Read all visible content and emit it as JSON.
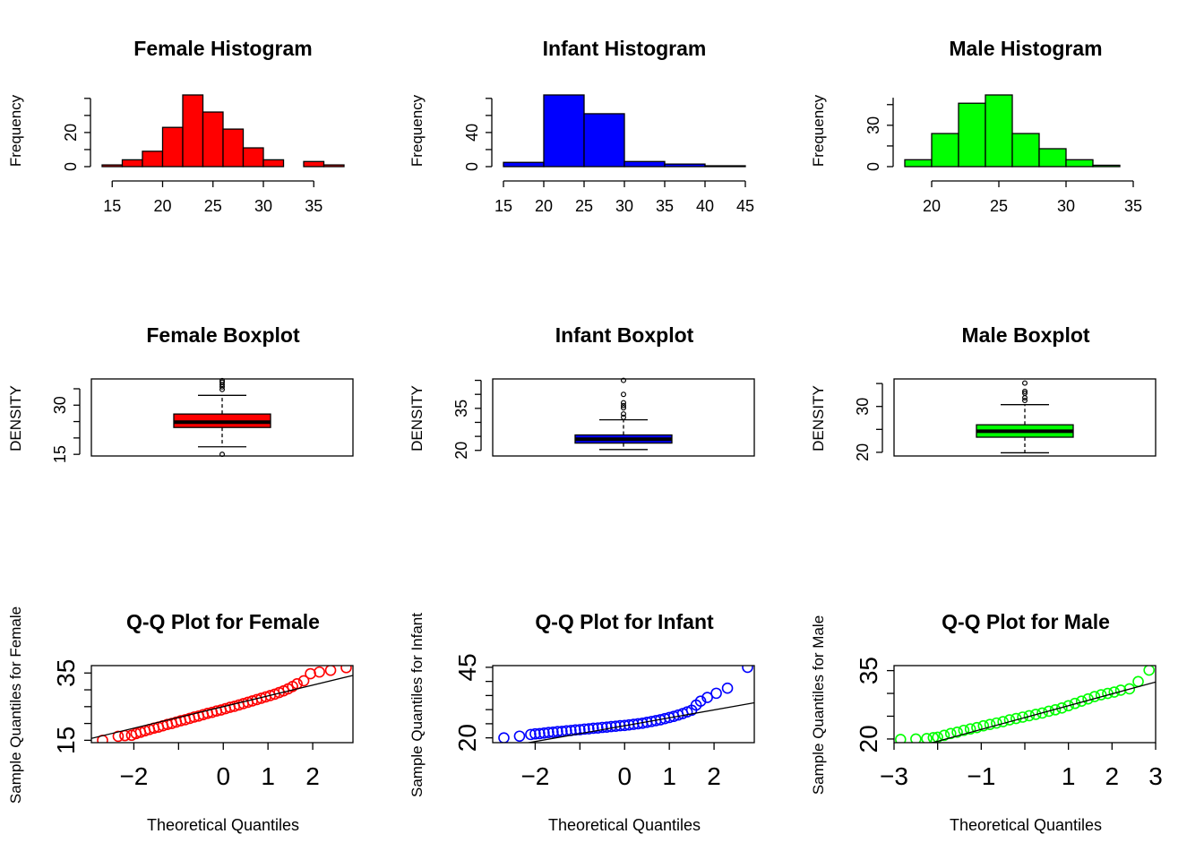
{
  "colors": {
    "Female": "#FF0000",
    "Infant": "#0000FF",
    "Male": "#00FF00",
    "axis": "#000000",
    "qqline": "#000000"
  },
  "histograms": [
    {
      "group": "Female",
      "title": "Female Histogram",
      "ylabel": "Frequency",
      "xlabel": "",
      "color": "#FF0000",
      "breaks": [
        14,
        16,
        18,
        20,
        22,
        24,
        26,
        28,
        30,
        32,
        34,
        36,
        38
      ],
      "counts": [
        1,
        4,
        9,
        23,
        42,
        32,
        22,
        11,
        4,
        0,
        3,
        1
      ],
      "xticks": [
        15,
        20,
        25,
        30,
        35
      ],
      "xlim": [
        14,
        38
      ],
      "yticks": [
        0,
        20
      ],
      "yaxis_max": 40
    },
    {
      "group": "Infant",
      "title": "Infant Histogram",
      "ylabel": "Frequency",
      "xlabel": "",
      "color": "#0000FF",
      "breaks": [
        15,
        20,
        25,
        30,
        35,
        40,
        45
      ],
      "counts": [
        5,
        84,
        62,
        6,
        3,
        1
      ],
      "xticks": [
        15,
        20,
        25,
        30,
        35,
        40,
        45
      ],
      "xlim": [
        15,
        45
      ],
      "yticks": [
        0,
        40
      ],
      "yaxis_max": 80
    },
    {
      "group": "Male",
      "title": "Male Histogram",
      "ylabel": "Frequency",
      "xlabel": "",
      "color": "#00FF00",
      "breaks": [
        18,
        20,
        22,
        24,
        26,
        28,
        30,
        32,
        34,
        36
      ],
      "counts": [
        5,
        24,
        46,
        52,
        24,
        13,
        5,
        1,
        0
      ],
      "xticks": [
        20,
        25,
        30,
        35
      ],
      "xlim": [
        18,
        36
      ],
      "yticks": [
        0,
        30
      ],
      "yaxis_max": 50
    }
  ],
  "boxplots": [
    {
      "group": "Female",
      "title": "Female Boxplot",
      "ylabel": "DENSITY",
      "color": "#FF0000",
      "ylim": [
        14.5,
        38
      ],
      "yticks": [
        15,
        30
      ],
      "yaxis_ticks": [
        15,
        20,
        25,
        30,
        35
      ],
      "whisker_low": 17.3,
      "q1": 23.2,
      "median": 24.8,
      "q3": 27.3,
      "whisker_high": 33.0,
      "outliers": [
        15.0,
        34.8,
        35.6,
        36.3,
        37.0,
        37.5
      ]
    },
    {
      "group": "Infant",
      "title": "Infant Boxplot",
      "ylabel": "DENSITY",
      "color": "#0000FF",
      "ylim": [
        18,
        45.5
      ],
      "yticks": [
        20,
        35
      ],
      "yaxis_ticks": [
        20,
        25,
        30,
        35,
        40,
        45
      ],
      "whisker_low": 20.3,
      "q1": 22.6,
      "median": 24.0,
      "q3": 25.5,
      "whisker_high": 30.9,
      "outliers": [
        31.8,
        33.0,
        35.2,
        36.0,
        37.0,
        40.0,
        45.0
      ]
    },
    {
      "group": "Male",
      "title": "Male Boxplot",
      "ylabel": "DENSITY",
      "color": "#00FF00",
      "ylim": [
        19.2,
        36
      ],
      "yticks": [
        20,
        30
      ],
      "yaxis_ticks": [
        20,
        25,
        30,
        35
      ],
      "whisker_low": 19.9,
      "q1": 23.3,
      "median": 24.6,
      "q3": 26.0,
      "whisker_high": 30.4,
      "outliers": [
        31.3,
        31.9,
        32.9,
        33.3,
        35.1
      ]
    }
  ],
  "qqplots": [
    {
      "group": "Female",
      "title": "Q-Q Plot for Female",
      "xlabel": "Theoretical Quantiles",
      "ylabel": "Sample Quantiles for Female",
      "color": "#FF0000",
      "xlim": [
        -2.95,
        2.9
      ],
      "ylim": [
        14.3,
        37.2
      ],
      "xticks": [
        -2,
        0,
        1,
        2
      ],
      "xaxis_ticks": [
        -3,
        -2,
        -1,
        0,
        1,
        2,
        3
      ],
      "yticks": [
        15,
        35
      ],
      "yaxis_ticks": [
        15,
        20,
        25,
        30,
        35
      ],
      "line": {
        "intercept": 25.0,
        "slope": 3.2
      },
      "points": [
        [
          -2.7,
          15.0
        ],
        [
          -2.35,
          16.2
        ],
        [
          -2.2,
          16.4
        ],
        [
          -2.05,
          16.5
        ],
        [
          -1.95,
          17.0
        ],
        [
          -1.85,
          17.4
        ],
        [
          -1.75,
          17.8
        ],
        [
          -1.65,
          18.2
        ],
        [
          -1.55,
          18.6
        ],
        [
          -1.45,
          18.9
        ],
        [
          -1.35,
          19.3
        ],
        [
          -1.25,
          19.7
        ],
        [
          -1.15,
          20.0
        ],
        [
          -1.05,
          20.4
        ],
        [
          -0.95,
          20.8
        ],
        [
          -0.85,
          21.1
        ],
        [
          -0.75,
          21.5
        ],
        [
          -0.65,
          21.9
        ],
        [
          -0.55,
          22.2
        ],
        [
          -0.45,
          22.6
        ],
        [
          -0.35,
          23.0
        ],
        [
          -0.25,
          23.3
        ],
        [
          -0.15,
          23.7
        ],
        [
          -0.05,
          24.0
        ],
        [
          0.05,
          24.4
        ],
        [
          0.15,
          24.8
        ],
        [
          0.25,
          25.1
        ],
        [
          0.35,
          25.5
        ],
        [
          0.45,
          25.9
        ],
        [
          0.55,
          26.3
        ],
        [
          0.65,
          26.7
        ],
        [
          0.75,
          27.1
        ],
        [
          0.85,
          27.5
        ],
        [
          0.95,
          27.9
        ],
        [
          1.05,
          28.3
        ],
        [
          1.15,
          28.7
        ],
        [
          1.25,
          29.2
        ],
        [
          1.35,
          29.7
        ],
        [
          1.45,
          30.3
        ],
        [
          1.55,
          31.0
        ],
        [
          1.65,
          31.8
        ],
        [
          1.8,
          32.7
        ],
        [
          1.95,
          34.8
        ],
        [
          2.15,
          35.3
        ],
        [
          2.4,
          35.8
        ],
        [
          2.75,
          36.6
        ]
      ]
    },
    {
      "group": "Infant",
      "title": "Q-Q Plot for Infant",
      "xlabel": "Theoretical Quantiles",
      "ylabel": "Sample Quantiles for Infant",
      "color": "#0000FF",
      "xlim": [
        -2.95,
        2.9
      ],
      "ylim": [
        18.3,
        45.6
      ],
      "xticks": [
        -2,
        0,
        1,
        2
      ],
      "xaxis_ticks": [
        -3,
        -2,
        -1,
        0,
        1,
        2,
        3
      ],
      "yticks": [
        20,
        45
      ],
      "yaxis_ticks": [
        20,
        25,
        30,
        35,
        40,
        45
      ],
      "line": {
        "intercept": 24.3,
        "slope": 2.8
      },
      "points": [
        [
          -2.7,
          20.0
        ],
        [
          -2.35,
          20.6
        ],
        [
          -2.1,
          21.2
        ],
        [
          -2.0,
          21.4
        ],
        [
          -1.9,
          21.5
        ],
        [
          -1.8,
          21.7
        ],
        [
          -1.7,
          21.9
        ],
        [
          -1.6,
          22.0
        ],
        [
          -1.5,
          22.2
        ],
        [
          -1.4,
          22.3
        ],
        [
          -1.3,
          22.5
        ],
        [
          -1.2,
          22.6
        ],
        [
          -1.1,
          22.8
        ],
        [
          -1.0,
          22.9
        ],
        [
          -0.9,
          23.1
        ],
        [
          -0.8,
          23.2
        ],
        [
          -0.7,
          23.4
        ],
        [
          -0.6,
          23.5
        ],
        [
          -0.5,
          23.7
        ],
        [
          -0.4,
          23.8
        ],
        [
          -0.3,
          24.0
        ],
        [
          -0.2,
          24.1
        ],
        [
          -0.1,
          24.3
        ],
        [
          0.0,
          24.4
        ],
        [
          0.1,
          24.6
        ],
        [
          0.2,
          24.8
        ],
        [
          0.3,
          25.0
        ],
        [
          0.4,
          25.2
        ],
        [
          0.5,
          25.5
        ],
        [
          0.6,
          25.8
        ],
        [
          0.7,
          26.1
        ],
        [
          0.8,
          26.4
        ],
        [
          0.9,
          26.8
        ],
        [
          1.0,
          27.2
        ],
        [
          1.1,
          27.6
        ],
        [
          1.2,
          28.1
        ],
        [
          1.3,
          28.6
        ],
        [
          1.4,
          29.2
        ],
        [
          1.5,
          29.8
        ],
        [
          1.6,
          31.6
        ],
        [
          1.7,
          33.0
        ],
        [
          1.85,
          34.3
        ],
        [
          2.05,
          35.8
        ],
        [
          2.3,
          37.6
        ],
        [
          2.75,
          45.0
        ]
      ]
    },
    {
      "group": "Male",
      "title": "Q-Q Plot for Male",
      "xlabel": "Theoretical Quantiles",
      "ylabel": "Sample Quantiles for Male",
      "color": "#00FF00",
      "xlim": [
        -3,
        3
      ],
      "ylim": [
        19.2,
        36.1
      ],
      "xticks": [
        -3,
        -1,
        1,
        2,
        3
      ],
      "xaxis_ticks": [
        -3,
        -2,
        -1,
        0,
        1,
        2,
        3
      ],
      "yticks": [
        20,
        35
      ],
      "yaxis_ticks": [
        20,
        25,
        30,
        35
      ],
      "line": {
        "intercept": 24.7,
        "slope": 2.6
      },
      "points": [
        [
          -2.85,
          19.9
        ],
        [
          -2.5,
          20.0
        ],
        [
          -2.25,
          20.1
        ],
        [
          -2.1,
          20.3
        ],
        [
          -2.0,
          20.4
        ],
        [
          -1.85,
          20.8
        ],
        [
          -1.7,
          21.2
        ],
        [
          -1.55,
          21.5
        ],
        [
          -1.4,
          21.9
        ],
        [
          -1.25,
          22.2
        ],
        [
          -1.1,
          22.5
        ],
        [
          -0.95,
          22.9
        ],
        [
          -0.8,
          23.2
        ],
        [
          -0.65,
          23.5
        ],
        [
          -0.5,
          23.8
        ],
        [
          -0.35,
          24.2
        ],
        [
          -0.2,
          24.5
        ],
        [
          -0.05,
          24.8
        ],
        [
          0.1,
          25.1
        ],
        [
          0.25,
          25.4
        ],
        [
          0.4,
          25.7
        ],
        [
          0.55,
          26.1
        ],
        [
          0.7,
          26.4
        ],
        [
          0.85,
          26.8
        ],
        [
          1.0,
          27.3
        ],
        [
          1.15,
          27.8
        ],
        [
          1.3,
          28.3
        ],
        [
          1.45,
          28.8
        ],
        [
          1.6,
          29.3
        ],
        [
          1.75,
          29.7
        ],
        [
          1.9,
          30.0
        ],
        [
          2.05,
          30.3
        ],
        [
          2.2,
          30.7
        ],
        [
          2.4,
          31.0
        ],
        [
          2.6,
          32.6
        ],
        [
          2.85,
          35.1
        ]
      ]
    }
  ]
}
